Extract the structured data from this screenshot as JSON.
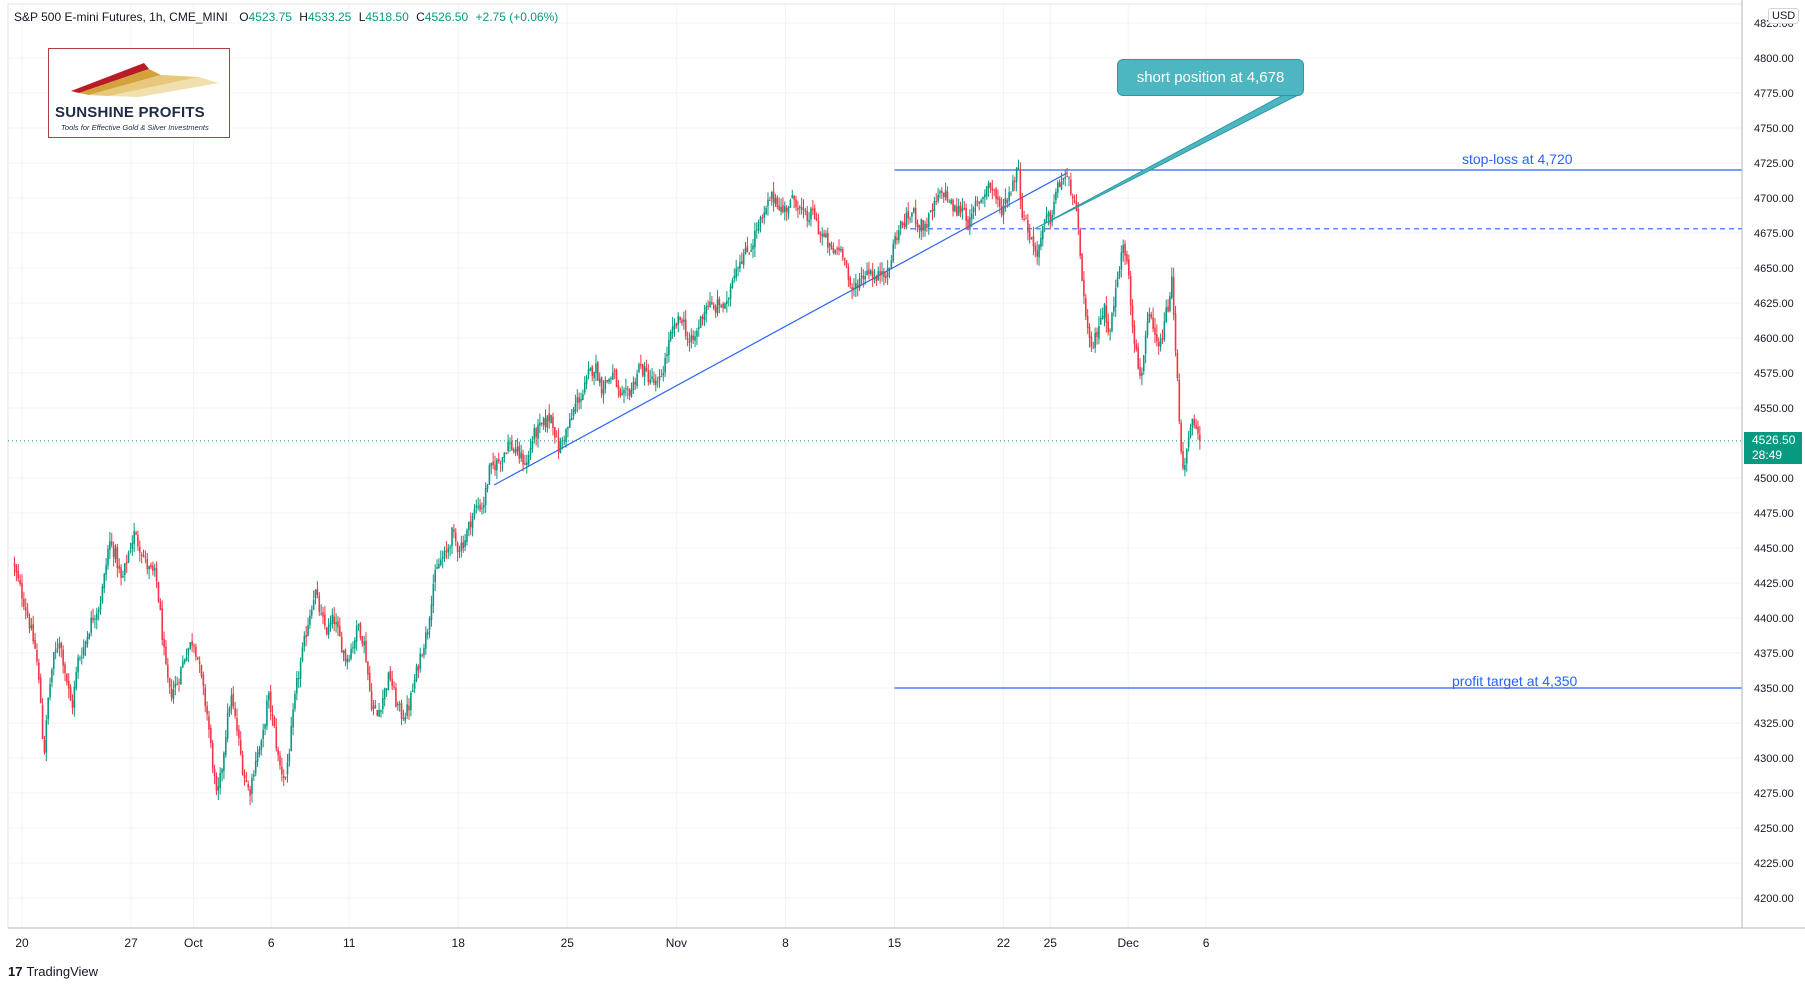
{
  "header": {
    "symbol": "S&P 500 E-mini Futures, 1h, CME_MINI",
    "open_label": "O",
    "open": "4523.75",
    "high_label": "H",
    "high": "4533.25",
    "low_label": "L",
    "low": "4518.50",
    "close_label": "C",
    "close": "4526.50",
    "change": "+2.75 (+0.06%)"
  },
  "logo": {
    "name": "SUNSHINE PROFITS",
    "tagline": "Tools for Effective Gold & Silver Investments"
  },
  "currency": "USD",
  "price_tag": {
    "price": "4526.50",
    "countdown": "28:49"
  },
  "annotations": {
    "callout": "short position at 4,678",
    "stop_loss": "stop-loss at 4,720",
    "profit_target": "profit target at 4,350"
  },
  "footer": {
    "brand": "TradingView"
  },
  "colors": {
    "up": "#089981",
    "down": "#f23645",
    "line": "#2962ff",
    "callout": "#4db6c1",
    "grid": "#f0f3fa"
  },
  "chart_data": {
    "type": "candlestick",
    "title": "S&P 500 E-mini Futures, 1h, CME_MINI",
    "ylim": [
      4180,
      4830
    ],
    "y_ticks": [
      4200,
      4225,
      4250,
      4275,
      4300,
      4325,
      4350,
      4375,
      4400,
      4425,
      4450,
      4475,
      4500,
      4525,
      4550,
      4575,
      4600,
      4625,
      4650,
      4675,
      4700,
      4725,
      4750,
      4775,
      4800,
      4825
    ],
    "y_tick_labels": [
      "4200.00",
      "4225.00",
      "4250.00",
      "4275.00",
      "4300.00",
      "4325.00",
      "4350.00",
      "4375.00",
      "4400.00",
      "4425.00",
      "4450.00",
      "4475.00",
      "4500.00",
      "4525.00",
      "4550.00",
      "4575.00",
      "4600.00",
      "4625.00",
      "4650.00",
      "4675.00",
      "4700.00",
      "4725.00",
      "4750.00",
      "4775.00",
      "4800.00",
      "4825.00"
    ],
    "x_ticks": [
      {
        "label": "20",
        "day": 0
      },
      {
        "label": "27",
        "day": 7
      },
      {
        "label": "Oct",
        "day": 11
      },
      {
        "label": "6",
        "day": 16
      },
      {
        "label": "11",
        "day": 21
      },
      {
        "label": "18",
        "day": 28
      },
      {
        "label": "25",
        "day": 35
      },
      {
        "label": "Nov",
        "day": 42
      },
      {
        "label": "8",
        "day": 49
      },
      {
        "label": "15",
        "day": 56
      },
      {
        "label": "22",
        "day": 63
      },
      {
        "label": "25",
        "day": 66
      },
      {
        "label": "Dec",
        "day": 71
      },
      {
        "label": "6",
        "day": 76
      }
    ],
    "price_path": [
      [
        -0.6,
        4440
      ],
      [
        0.3,
        4405
      ],
      [
        0.9,
        4375
      ],
      [
        1.2,
        4340
      ],
      [
        1.4,
        4300
      ],
      [
        1.7,
        4345
      ],
      [
        2.0,
        4370
      ],
      [
        2.4,
        4385
      ],
      [
        2.8,
        4360
      ],
      [
        3.2,
        4335
      ],
      [
        3.6,
        4370
      ],
      [
        4.0,
        4380
      ],
      [
        4.5,
        4400
      ],
      [
        5.0,
        4410
      ],
      [
        5.3,
        4430
      ],
      [
        5.6,
        4455
      ],
      [
        6.0,
        4445
      ],
      [
        6.4,
        4425
      ],
      [
        6.8,
        4445
      ],
      [
        7.2,
        4460
      ],
      [
        7.6,
        4450
      ],
      [
        8.1,
        4435
      ],
      [
        8.6,
        4430
      ],
      [
        8.9,
        4400
      ],
      [
        9.2,
        4365
      ],
      [
        9.5,
        4345
      ],
      [
        10.0,
        4355
      ],
      [
        10.5,
        4375
      ],
      [
        11.0,
        4385
      ],
      [
        11.3,
        4370
      ],
      [
        11.6,
        4350
      ],
      [
        11.9,
        4330
      ],
      [
        12.2,
        4300
      ],
      [
        12.5,
        4270
      ],
      [
        12.8,
        4290
      ],
      [
        13.1,
        4320
      ],
      [
        13.4,
        4345
      ],
      [
        13.8,
        4320
      ],
      [
        14.2,
        4290
      ],
      [
        14.6,
        4275
      ],
      [
        15.0,
        4300
      ],
      [
        15.4,
        4310
      ],
      [
        15.8,
        4345
      ],
      [
        16.2,
        4320
      ],
      [
        16.5,
        4295
      ],
      [
        16.9,
        4285
      ],
      [
        17.2,
        4310
      ],
      [
        17.6,
        4350
      ],
      [
        18.0,
        4375
      ],
      [
        18.4,
        4400
      ],
      [
        18.8,
        4420
      ],
      [
        19.2,
        4400
      ],
      [
        19.6,
        4390
      ],
      [
        20.0,
        4400
      ],
      [
        20.4,
        4385
      ],
      [
        20.8,
        4370
      ],
      [
        21.2,
        4380
      ],
      [
        21.6,
        4395
      ],
      [
        22.0,
        4380
      ],
      [
        22.4,
        4340
      ],
      [
        22.8,
        4330
      ],
      [
        23.2,
        4345
      ],
      [
        23.6,
        4360
      ],
      [
        24.0,
        4340
      ],
      [
        24.4,
        4330
      ],
      [
        24.8,
        4335
      ],
      [
        25.2,
        4355
      ],
      [
        25.6,
        4375
      ],
      [
        26.0,
        4390
      ],
      [
        26.4,
        4425
      ],
      [
        26.8,
        4440
      ],
      [
        27.2,
        4445
      ],
      [
        27.6,
        4460
      ],
      [
        28.0,
        4450
      ],
      [
        28.4,
        4455
      ],
      [
        28.8,
        4470
      ],
      [
        29.2,
        4480
      ],
      [
        29.6,
        4480
      ],
      [
        30.0,
        4505
      ],
      [
        30.4,
        4510
      ],
      [
        30.8,
        4515
      ],
      [
        31.2,
        4525
      ],
      [
        31.6,
        4520
      ],
      [
        32.0,
        4515
      ],
      [
        32.4,
        4510
      ],
      [
        32.8,
        4530
      ],
      [
        33.2,
        4535
      ],
      [
        33.6,
        4540
      ],
      [
        34.0,
        4545
      ],
      [
        34.4,
        4520
      ],
      [
        34.8,
        4530
      ],
      [
        35.2,
        4540
      ],
      [
        35.6,
        4555
      ],
      [
        36.0,
        4560
      ],
      [
        36.4,
        4575
      ],
      [
        36.8,
        4580
      ],
      [
        37.2,
        4565
      ],
      [
        37.6,
        4570
      ],
      [
        38.0,
        4575
      ],
      [
        38.4,
        4555
      ],
      [
        38.8,
        4560
      ],
      [
        39.2,
        4565
      ],
      [
        39.6,
        4580
      ],
      [
        40.0,
        4575
      ],
      [
        40.4,
        4570
      ],
      [
        40.8,
        4565
      ],
      [
        41.2,
        4580
      ],
      [
        41.6,
        4600
      ],
      [
        42.0,
        4610
      ],
      [
        42.4,
        4615
      ],
      [
        42.8,
        4595
      ],
      [
        43.2,
        4600
      ],
      [
        43.6,
        4615
      ],
      [
        44.0,
        4625
      ],
      [
        44.4,
        4620
      ],
      [
        44.8,
        4625
      ],
      [
        45.2,
        4620
      ],
      [
        45.6,
        4645
      ],
      [
        46.0,
        4655
      ],
      [
        46.4,
        4660
      ],
      [
        46.8,
        4665
      ],
      [
        47.2,
        4680
      ],
      [
        47.6,
        4685
      ],
      [
        48.0,
        4700
      ],
      [
        48.4,
        4700
      ],
      [
        48.8,
        4690
      ],
      [
        49.2,
        4695
      ],
      [
        49.6,
        4700
      ],
      [
        50.0,
        4690
      ],
      [
        50.4,
        4685
      ],
      [
        50.8,
        4690
      ],
      [
        51.2,
        4675
      ],
      [
        51.6,
        4670
      ],
      [
        52.0,
        4660
      ],
      [
        52.4,
        4665
      ],
      [
        52.8,
        4660
      ],
      [
        53.2,
        4630
      ],
      [
        53.6,
        4640
      ],
      [
        54.0,
        4645
      ],
      [
        54.4,
        4650
      ],
      [
        54.8,
        4640
      ],
      [
        55.2,
        4650
      ],
      [
        55.6,
        4645
      ],
      [
        56.0,
        4670
      ],
      [
        56.4,
        4680
      ],
      [
        56.8,
        4685
      ],
      [
        57.2,
        4690
      ],
      [
        57.6,
        4680
      ],
      [
        58.0,
        4680
      ],
      [
        58.4,
        4690
      ],
      [
        58.8,
        4700
      ],
      [
        59.2,
        4705
      ],
      [
        59.6,
        4695
      ],
      [
        60.0,
        4690
      ],
      [
        60.4,
        4695
      ],
      [
        60.8,
        4680
      ],
      [
        61.2,
        4695
      ],
      [
        61.6,
        4700
      ],
      [
        62.0,
        4710
      ],
      [
        62.4,
        4705
      ],
      [
        62.8,
        4690
      ],
      [
        63.2,
        4700
      ],
      [
        63.6,
        4710
      ],
      [
        63.9,
        4725
      ],
      [
        64.2,
        4690
      ],
      [
        64.5,
        4680
      ],
      [
        64.8,
        4670
      ],
      [
        65.1,
        4660
      ],
      [
        65.4,
        4670
      ],
      [
        65.7,
        4685
      ],
      [
        66.0,
        4685
      ],
      [
        66.4,
        4705
      ],
      [
        66.8,
        4715
      ],
      [
        67.1,
        4712
      ],
      [
        67.4,
        4705
      ],
      [
        67.7,
        4685
      ],
      [
        68.0,
        4650
      ],
      [
        68.3,
        4610
      ],
      [
        68.6,
        4590
      ],
      [
        68.9,
        4600
      ],
      [
        69.2,
        4615
      ],
      [
        69.5,
        4620
      ],
      [
        69.8,
        4605
      ],
      [
        70.1,
        4625
      ],
      [
        70.4,
        4650
      ],
      [
        70.7,
        4665
      ],
      [
        71.0,
        4655
      ],
      [
        71.2,
        4620
      ],
      [
        71.5,
        4590
      ],
      [
        71.8,
        4570
      ],
      [
        72.1,
        4600
      ],
      [
        72.4,
        4615
      ],
      [
        72.7,
        4600
      ],
      [
        73.0,
        4590
      ],
      [
        73.3,
        4610
      ],
      [
        73.6,
        4625
      ],
      [
        73.8,
        4640
      ],
      [
        74.0,
        4600
      ],
      [
        74.2,
        4560
      ],
      [
        74.4,
        4520
      ],
      [
        74.6,
        4505
      ],
      [
        74.8,
        4520
      ],
      [
        75.0,
        4535
      ],
      [
        75.2,
        4540
      ],
      [
        75.4,
        4530
      ],
      [
        75.6,
        4526.5
      ]
    ],
    "trendline": {
      "from": {
        "day": 30.3,
        "price": 4495
      },
      "to": {
        "day": 67.1,
        "price": 4718
      }
    },
    "levels": [
      {
        "name": "stop-loss",
        "price": 4720,
        "style": "solid",
        "from_day": 56.0
      },
      {
        "name": "entry",
        "price": 4678,
        "style": "dashed",
        "from_day": 57.0
      },
      {
        "name": "profit target",
        "price": 4350,
        "style": "solid",
        "from_day": 56.0
      }
    ],
    "current_price": 4526.5
  }
}
